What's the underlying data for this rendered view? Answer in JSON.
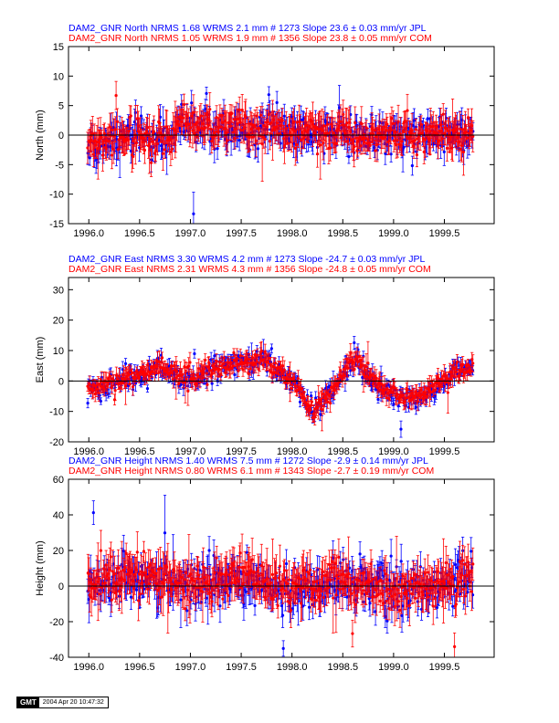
{
  "colors": {
    "jpl": "#0000ff",
    "com": "#ff0000",
    "axis": "#000000"
  },
  "stamp": {
    "logo": "GMT",
    "date": "2004 Apr 20 10:47:32"
  },
  "chart_data": [
    {
      "type": "scatter",
      "ylabel": "North (mm)",
      "xlim": [
        1995.8,
        1999.99
      ],
      "ylim": [
        -15,
        15
      ],
      "x_ticks": [
        1996.0,
        1996.5,
        1997.0,
        1997.5,
        1998.0,
        1998.5,
        1999.0,
        1999.5
      ],
      "x_tick_labels": [
        "1996.0",
        "1996.5",
        "1997.0",
        "1997.5",
        "1998.0",
        "1998.5",
        "1999.0",
        "1999.5"
      ],
      "y_ticks": [
        -15,
        -10,
        -5,
        0,
        5,
        10,
        15
      ],
      "y_tick_labels": [
        "-15",
        "-10",
        "-5",
        "0",
        "5",
        "10",
        "15"
      ],
      "legend": [
        {
          "text": "DAM2_GNR North NRMS 1.68 WRMS  2.1 mm # 1273 Slope   23.6 ±  0.03 mm/yr JPL",
          "color": "#0000ff"
        },
        {
          "text": "DAM2_GNR North NRMS 1.05 WRMS  1.9 mm # 1356 Slope   23.8 ±  0.05 mm/yr COM",
          "color": "#ff0000"
        }
      ],
      "series": [
        {
          "name": "JPL",
          "color": "#0000ff",
          "x_start": 1995.99,
          "x_end": 1999.78,
          "offset": 0.0,
          "noise": 1.5,
          "err": 1.6,
          "trend": [
            [
              1996.0,
              -1.5
            ],
            [
              1996.4,
              0.0
            ],
            [
              1996.8,
              -1.0
            ],
            [
              1996.9,
              2.5
            ],
            [
              1997.0,
              1.5
            ],
            [
              1997.5,
              1.0
            ],
            [
              1998.0,
              0.5
            ],
            [
              1998.5,
              0.0
            ],
            [
              1999.0,
              -0.5
            ],
            [
              1999.5,
              0.0
            ],
            [
              1999.8,
              0.0
            ]
          ]
        },
        {
          "name": "COM",
          "color": "#ff0000",
          "x_start": 1995.99,
          "x_end": 1999.78,
          "offset": 0.3,
          "noise": 1.3,
          "err": 2.0,
          "trend": [
            [
              1996.0,
              -1.5
            ],
            [
              1996.4,
              0.0
            ],
            [
              1996.8,
              -1.0
            ],
            [
              1996.9,
              2.5
            ],
            [
              1997.0,
              1.5
            ],
            [
              1997.5,
              1.0
            ],
            [
              1998.0,
              0.5
            ],
            [
              1998.5,
              0.0
            ],
            [
              1999.0,
              -0.5
            ],
            [
              1999.5,
              0.0
            ],
            [
              1999.8,
              0.0
            ]
          ]
        }
      ]
    },
    {
      "type": "scatter",
      "ylabel": "East (mm)",
      "xlim": [
        1995.8,
        1999.99
      ],
      "ylim": [
        -20,
        34
      ],
      "x_ticks": [
        1996.0,
        1996.5,
        1997.0,
        1997.5,
        1998.0,
        1998.5,
        1999.0,
        1999.5
      ],
      "x_tick_labels": [
        "1996.0",
        "1996.5",
        "1997.0",
        "1997.5",
        "1998.0",
        "1998.5",
        "1999.0",
        "1999.5"
      ],
      "y_ticks": [
        -20,
        -10,
        0,
        10,
        20,
        30
      ],
      "y_tick_labels": [
        "-20",
        "-10",
        "0",
        "10",
        "20",
        "30"
      ],
      "legend": [
        {
          "text": "DAM2_GNR East NRMS 3.30 WRMS  4.2 mm # 1273 Slope  -24.7 ±  0.03 mm/yr JPL",
          "color": "#0000ff"
        },
        {
          "text": "DAM2_GNR East NRMS 2.31 WRMS  4.3 mm # 1356 Slope  -24.8 ±  0.05 mm/yr COM",
          "color": "#ff0000"
        }
      ],
      "series": [
        {
          "name": "JPL",
          "color": "#0000ff",
          "x_start": 1995.99,
          "x_end": 1999.78,
          "offset": 0.0,
          "noise": 1.8,
          "err": 1.8,
          "trend": [
            [
              1996.0,
              -3.0
            ],
            [
              1996.2,
              -1.0
            ],
            [
              1996.5,
              2.0
            ],
            [
              1996.7,
              5.0
            ],
            [
              1996.8,
              3.0
            ],
            [
              1997.0,
              0.0
            ],
            [
              1997.2,
              3.0
            ],
            [
              1997.5,
              6.0
            ],
            [
              1997.7,
              7.0
            ],
            [
              1997.9,
              3.0
            ],
            [
              1998.05,
              -2.0
            ],
            [
              1998.2,
              -10.0
            ],
            [
              1998.35,
              -5.0
            ],
            [
              1998.5,
              2.0
            ],
            [
              1998.6,
              7.0
            ],
            [
              1998.75,
              2.0
            ],
            [
              1998.9,
              -4.0
            ],
            [
              1999.1,
              -6.0
            ],
            [
              1999.3,
              -5.0
            ],
            [
              1999.45,
              -1.0
            ],
            [
              1999.6,
              3.0
            ],
            [
              1999.8,
              5.0
            ]
          ]
        },
        {
          "name": "COM",
          "color": "#ff0000",
          "x_start": 1995.99,
          "x_end": 1999.78,
          "offset": 0.3,
          "noise": 1.5,
          "err": 2.2,
          "trend": [
            [
              1996.0,
              -3.0
            ],
            [
              1996.2,
              -1.0
            ],
            [
              1996.5,
              2.0
            ],
            [
              1996.7,
              5.0
            ],
            [
              1996.8,
              3.0
            ],
            [
              1997.0,
              0.0
            ],
            [
              1997.2,
              3.0
            ],
            [
              1997.5,
              6.0
            ],
            [
              1997.7,
              7.0
            ],
            [
              1997.9,
              3.0
            ],
            [
              1998.05,
              -2.0
            ],
            [
              1998.2,
              -10.0
            ],
            [
              1998.35,
              -5.0
            ],
            [
              1998.5,
              2.0
            ],
            [
              1998.6,
              7.0
            ],
            [
              1998.75,
              2.0
            ],
            [
              1998.9,
              -4.0
            ],
            [
              1999.1,
              -6.0
            ],
            [
              1999.3,
              -5.0
            ],
            [
              1999.45,
              -1.0
            ],
            [
              1999.6,
              3.0
            ],
            [
              1999.8,
              5.0
            ]
          ]
        }
      ]
    },
    {
      "type": "scatter",
      "ylabel": "Height (mm)",
      "xlim": [
        1995.8,
        1999.99
      ],
      "ylim": [
        -40,
        60
      ],
      "x_ticks": [
        1996.0,
        1996.5,
        1997.0,
        1997.5,
        1998.0,
        1998.5,
        1999.0,
        1999.5
      ],
      "x_tick_labels": [
        "1996.0",
        "1996.5",
        "1997.0",
        "1997.5",
        "1998.0",
        "1998.5",
        "1999.0",
        "1999.5"
      ],
      "y_ticks": [
        -40,
        -20,
        0,
        20,
        40,
        60
      ],
      "y_tick_labels": [
        "-40",
        "-20",
        "0",
        "20",
        "40",
        "60"
      ],
      "legend": [
        {
          "text": "DAM2_GNR Height NRMS 1.40 WRMS  7.5 mm # 1272 Slope   -2.9 ±  0.14 mm/yr JPL",
          "color": "#0000ff"
        },
        {
          "text": "DAM2_GNR Height NRMS 0.80 WRMS  6.1 mm # 1343 Slope   -2.7 ±  0.19 mm/yr COM",
          "color": "#ff0000"
        }
      ],
      "series": [
        {
          "name": "JPL",
          "color": "#0000ff",
          "x_start": 1995.99,
          "x_end": 1999.78,
          "offset": 0.0,
          "noise": 6.5,
          "err": 6.5,
          "trend": [
            [
              1996.0,
              0.0
            ],
            [
              1996.5,
              5.0
            ],
            [
              1997.0,
              0.0
            ],
            [
              1997.5,
              5.0
            ],
            [
              1998.0,
              -3.0
            ],
            [
              1998.5,
              2.0
            ],
            [
              1999.0,
              -3.0
            ],
            [
              1999.5,
              0.0
            ],
            [
              1999.8,
              5.0
            ]
          ]
        },
        {
          "name": "COM",
          "color": "#ff0000",
          "x_start": 1995.99,
          "x_end": 1999.78,
          "offset": 1.0,
          "noise": 5.5,
          "err": 8.0,
          "trend": [
            [
              1996.0,
              0.0
            ],
            [
              1996.5,
              5.0
            ],
            [
              1997.0,
              0.0
            ],
            [
              1997.5,
              5.0
            ],
            [
              1998.0,
              -3.0
            ],
            [
              1998.5,
              2.0
            ],
            [
              1999.0,
              -3.0
            ],
            [
              1999.5,
              0.0
            ],
            [
              1999.8,
              5.0
            ]
          ]
        }
      ]
    }
  ]
}
